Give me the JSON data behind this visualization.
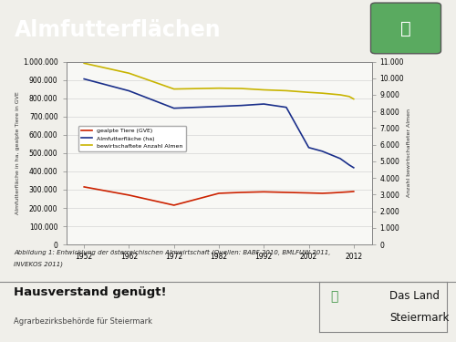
{
  "title": "Almfutterflächen",
  "title_bg_color": "#3d9444",
  "title_text_color": "#ffffff",
  "bg_color": "#f0efea",
  "plot_bg_color": "#f8f8f5",
  "chart_border_color": "#999999",
  "years": [
    1952,
    1962,
    1972,
    1982,
    1987,
    1992,
    1997,
    2002,
    2005,
    2007,
    2009,
    2011,
    2012
  ],
  "red_label": "gealpte Tiere (GVE)",
  "red_color": "#cc2200",
  "red_values": [
    315000,
    270000,
    215000,
    280000,
    285000,
    288000,
    285000,
    282000,
    280000,
    282000,
    285000,
    288000,
    290000
  ],
  "blue_label": "Almfutterfläche (ha)",
  "blue_color": "#1a2f8a",
  "blue_values": [
    905000,
    840000,
    745000,
    755000,
    760000,
    768000,
    750000,
    530000,
    510000,
    490000,
    470000,
    435000,
    420000
  ],
  "yellow_label": "bewirtschaftete Anzahl Almen",
  "yellow_color": "#c8b400",
  "yellow_values": [
    10900,
    10300,
    9350,
    9400,
    9380,
    9300,
    9250,
    9150,
    9100,
    9050,
    9000,
    8900,
    8750
  ],
  "ylabel_left": "Almfutterfläche in ha, gealpte Tiere in GVE",
  "ylabel_right": "Anzahl bewirtschafteter Almen",
  "ylim_left": [
    0,
    1000000
  ],
  "ylim_right": [
    0,
    11000
  ],
  "yticks_left": [
    0,
    100000,
    200000,
    300000,
    400000,
    500000,
    600000,
    700000,
    800000,
    900000,
    1000000
  ],
  "yticks_right": [
    0,
    1000,
    2000,
    3000,
    4000,
    5000,
    6000,
    7000,
    8000,
    9000,
    10000,
    11000
  ],
  "xticks": [
    1952,
    1962,
    1972,
    1982,
    1992,
    2002,
    2012
  ],
  "caption_line1": "Abbildung 1: Entwicklung der österreichischen Almwirtschaft (Quellen: BABF 2010, BMLFUW 2011,",
  "caption_line2": "INVEKOS 2011)",
  "footer_bold": "Hausverstand genügt!",
  "footer_sub": "Agrarbezirksbehörde für Steiermark",
  "footer_right1": "Das Land",
  "footer_right2": "Steiermark"
}
